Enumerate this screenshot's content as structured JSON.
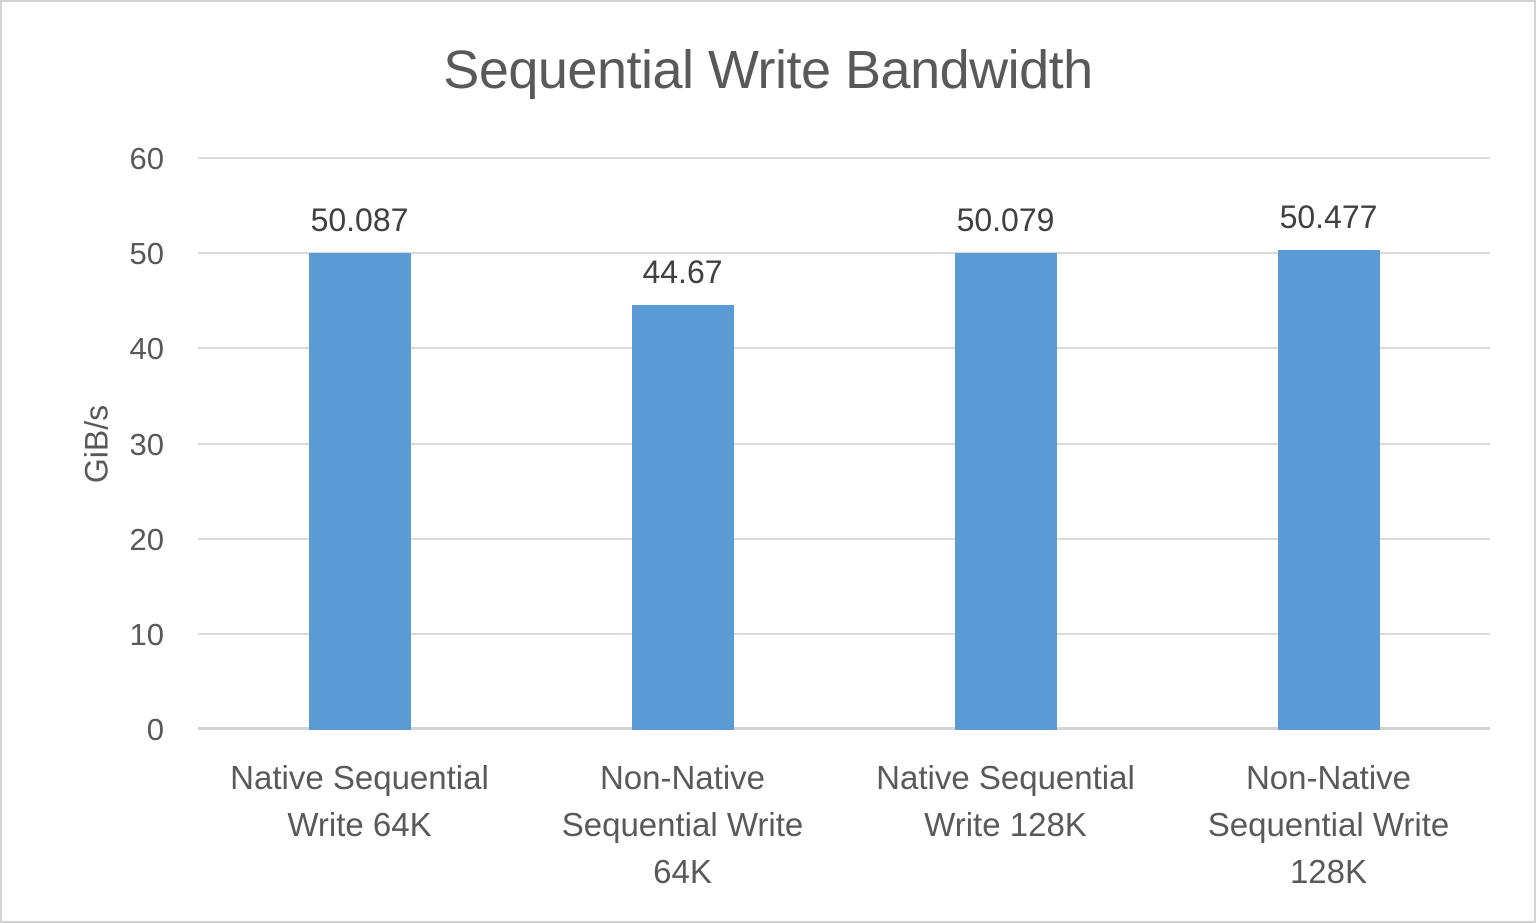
{
  "chart_data": {
    "type": "bar",
    "title": "Sequential Write Bandwidth",
    "xlabel": "",
    "ylabel": "GiB/s",
    "categories": [
      "Native Sequential Write 64K",
      "Non-Native Sequential Write 64K",
      "Native Sequential Write 128K",
      "Non-Native Sequential Write 128K"
    ],
    "category_display": [
      "Native Sequential\nWrite 64K",
      "Non-Native\nSequential Write\n64K",
      "Native Sequential\nWrite 128K",
      "Non-Native\nSequential Write\n128K"
    ],
    "values": [
      50.087,
      44.67,
      50.079,
      50.477
    ],
    "data_labels": [
      "50.087",
      "44.67",
      "50.079",
      "50.477"
    ],
    "ylim": [
      0,
      60
    ],
    "yticks": [
      0,
      10,
      20,
      30,
      40,
      50,
      60
    ],
    "grid": "horizontal",
    "legend": "none",
    "bar_color": "#5B9BD5",
    "gridline_color": "#D9D9D9",
    "axis_text_color": "#595959",
    "data_label_color": "#404040",
    "title_color": "#595959"
  }
}
